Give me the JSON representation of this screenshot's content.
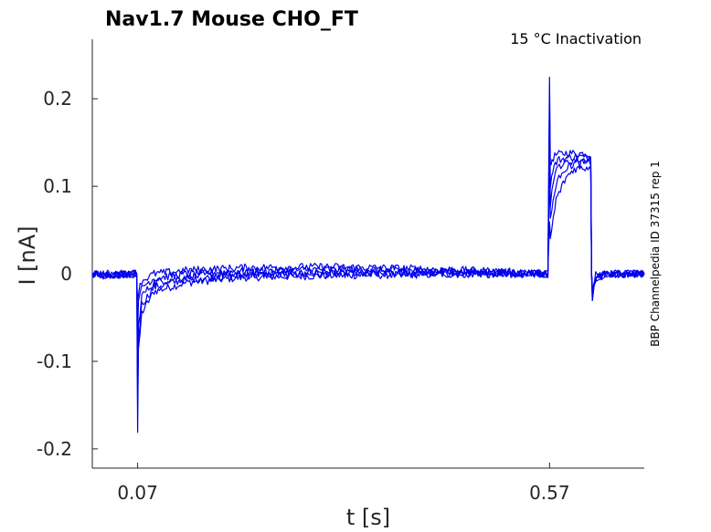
{
  "chart_data": {
    "type": "line",
    "title": "Nav1.7  Mouse  CHO_FT",
    "subtitle": "15 °C  Inactivation",
    "xlabel": "t [s]",
    "ylabel": "I [nA]",
    "side_note": "BBP Channelpedia ID 37315 rep 1",
    "xlim": [
      0.015,
      0.685
    ],
    "ylim": [
      -0.222,
      0.268
    ],
    "x_ticks": [
      {
        "value": 0.07,
        "label": "0.07"
      },
      {
        "value": 0.57,
        "label": "0.57"
      }
    ],
    "y_ticks": [
      {
        "value": -0.2,
        "label": "-0.2"
      },
      {
        "value": -0.1,
        "label": "-0.1"
      },
      {
        "value": 0,
        "label": "0"
      },
      {
        "value": 0.1,
        "label": "0.1"
      },
      {
        "value": 0.2,
        "label": "0.2"
      }
    ],
    "grid": false,
    "legend": "none",
    "series_color": "#0000ee",
    "series": [
      {
        "x": [
          0.015,
          0.03,
          0.069,
          0.07,
          0.071,
          0.075,
          0.09,
          0.13,
          0.2,
          0.3,
          0.4,
          0.5,
          0.568,
          0.57,
          0.571,
          0.573,
          0.578,
          0.59,
          0.62,
          0.621,
          0.622,
          0.626,
          0.64,
          0.685
        ],
        "y": [
          0.0,
          -0.003,
          0.0,
          -0.18,
          -0.09,
          -0.045,
          -0.02,
          -0.01,
          -0.004,
          -0.002,
          -0.001,
          0.0,
          0.0,
          0.228,
          0.12,
          0.131,
          0.136,
          0.138,
          0.137,
          0.0,
          -0.03,
          -0.005,
          0.0,
          0.0
        ]
      },
      {
        "x": [
          0.015,
          0.03,
          0.069,
          0.07,
          0.071,
          0.075,
          0.09,
          0.13,
          0.2,
          0.3,
          0.4,
          0.5,
          0.568,
          0.57,
          0.571,
          0.574,
          0.58,
          0.6,
          0.62,
          0.621,
          0.622,
          0.626,
          0.64,
          0.685
        ],
        "y": [
          0.0,
          -0.002,
          0.0,
          -0.15,
          -0.075,
          -0.035,
          -0.015,
          -0.006,
          -0.002,
          0.0,
          0.0,
          0.0,
          0.0,
          0.2,
          0.1,
          0.12,
          0.13,
          0.134,
          0.133,
          0.0,
          -0.028,
          -0.004,
          0.0,
          0.0
        ]
      },
      {
        "x": [
          0.015,
          0.03,
          0.069,
          0.07,
          0.071,
          0.075,
          0.09,
          0.13,
          0.2,
          0.3,
          0.4,
          0.5,
          0.568,
          0.57,
          0.571,
          0.575,
          0.582,
          0.6,
          0.62,
          0.621,
          0.622,
          0.626,
          0.64,
          0.685
        ],
        "y": [
          0.0,
          -0.002,
          0.0,
          -0.12,
          -0.06,
          -0.025,
          -0.01,
          -0.003,
          0.0,
          0.002,
          0.002,
          0.001,
          0.0,
          0.16,
          0.08,
          0.11,
          0.124,
          0.13,
          0.13,
          0.0,
          -0.025,
          -0.003,
          0.0,
          0.0
        ]
      },
      {
        "x": [
          0.015,
          0.03,
          0.069,
          0.07,
          0.071,
          0.075,
          0.09,
          0.13,
          0.2,
          0.3,
          0.4,
          0.5,
          0.568,
          0.57,
          0.571,
          0.576,
          0.585,
          0.6,
          0.62,
          0.621,
          0.622,
          0.626,
          0.64,
          0.685
        ],
        "y": [
          0.0,
          -0.001,
          0.0,
          -0.06,
          -0.035,
          -0.015,
          -0.005,
          0.0,
          0.003,
          0.005,
          0.004,
          0.002,
          0.0,
          0.12,
          0.06,
          0.095,
          0.118,
          0.126,
          0.127,
          0.0,
          -0.02,
          -0.002,
          0.0,
          0.0
        ]
      },
      {
        "x": [
          0.015,
          0.03,
          0.069,
          0.07,
          0.071,
          0.075,
          0.09,
          0.13,
          0.2,
          0.3,
          0.4,
          0.5,
          0.568,
          0.57,
          0.571,
          0.578,
          0.59,
          0.6,
          0.62,
          0.621,
          0.622,
          0.626,
          0.64,
          0.685
        ],
        "y": [
          0.0,
          0.0,
          0.0,
          -0.03,
          -0.02,
          -0.008,
          0.0,
          0.004,
          0.007,
          0.008,
          0.006,
          0.003,
          0.0,
          0.06,
          0.04,
          0.085,
          0.11,
          0.12,
          0.122,
          0.0,
          -0.015,
          -0.001,
          0.0,
          0.0
        ]
      }
    ]
  }
}
